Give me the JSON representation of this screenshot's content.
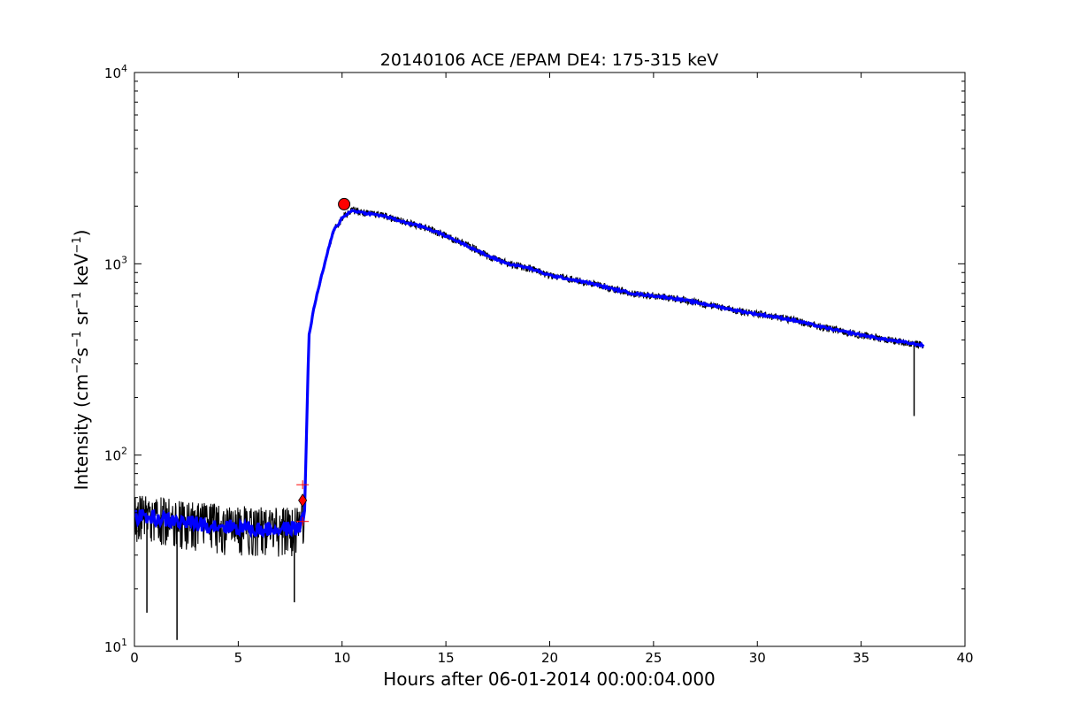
{
  "chart_data": {
    "type": "line",
    "title": "20140106 ACE /EPAM DE4: 175-315 keV",
    "xlabel": "Hours after 06-01-2014 00:00:04.000",
    "ylabel": {
      "prefix": "Intensity (cm",
      "exp1": "−2",
      "mid1": "s",
      "exp2": "−1",
      "mid2": " sr",
      "exp3": "−1",
      "mid3": " keV",
      "exp4": "−1",
      "suffix": ")"
    },
    "xlim": [
      0,
      40
    ],
    "ylim": [
      10,
      10000
    ],
    "yscale": "log",
    "x_ticks": [
      "0",
      "5",
      "10",
      "15",
      "20",
      "25",
      "30",
      "35",
      "40"
    ],
    "y_ticks": [
      {
        "base": "10",
        "exp": "1"
      },
      {
        "base": "10",
        "exp": "2"
      },
      {
        "base": "10",
        "exp": "3"
      },
      {
        "base": "10",
        "exp": "4"
      }
    ],
    "grid": false,
    "colors": {
      "raw": "#000000",
      "smoothed": "#0000ff",
      "marker": "#ff0000"
    },
    "series": [
      {
        "role": "raw",
        "profile": [
          [
            0.0,
            48
          ],
          [
            1.0,
            47
          ],
          [
            2.0,
            45
          ],
          [
            3.0,
            44
          ],
          [
            4.0,
            43
          ],
          [
            5.0,
            42
          ],
          [
            6.0,
            41
          ],
          [
            7.0,
            41
          ],
          [
            8.0,
            42
          ],
          [
            8.2,
            52
          ],
          [
            8.3,
            150
          ],
          [
            8.4,
            420
          ],
          [
            8.7,
            630
          ],
          [
            9.0,
            850
          ],
          [
            9.3,
            1150
          ],
          [
            9.6,
            1500
          ],
          [
            9.9,
            1650
          ],
          [
            10.0,
            1750
          ],
          [
            10.5,
            1900
          ],
          [
            11.0,
            1850
          ],
          [
            12.0,
            1780
          ],
          [
            13.0,
            1650
          ],
          [
            14.0,
            1550
          ],
          [
            15.0,
            1400
          ],
          [
            16.0,
            1250
          ],
          [
            17.0,
            1100
          ],
          [
            18.0,
            1000
          ],
          [
            19.0,
            950
          ],
          [
            20.0,
            870
          ],
          [
            21.0,
            830
          ],
          [
            22.0,
            790
          ],
          [
            23.0,
            740
          ],
          [
            24.0,
            700
          ],
          [
            25.0,
            680
          ],
          [
            26.0,
            660
          ],
          [
            27.0,
            630
          ],
          [
            28.0,
            600
          ],
          [
            29.0,
            570
          ],
          [
            30.0,
            545
          ],
          [
            31.0,
            525
          ],
          [
            32.0,
            500
          ],
          [
            33.0,
            470
          ],
          [
            34.0,
            445
          ],
          [
            35.0,
            425
          ],
          [
            36.0,
            405
          ],
          [
            37.0,
            390
          ],
          [
            38.0,
            375
          ]
        ],
        "spikes": [
          [
            0.6,
            15
          ],
          [
            2.05,
            10.8
          ],
          [
            7.7,
            17
          ],
          [
            37.55,
            160
          ]
        ]
      },
      {
        "role": "smoothed",
        "profile": [
          [
            0.0,
            48
          ],
          [
            1.0,
            47
          ],
          [
            2.0,
            45
          ],
          [
            3.0,
            44
          ],
          [
            4.0,
            43
          ],
          [
            5.0,
            42
          ],
          [
            6.0,
            41
          ],
          [
            7.0,
            41
          ],
          [
            8.0,
            42
          ],
          [
            8.2,
            52
          ],
          [
            8.3,
            150
          ],
          [
            8.4,
            420
          ],
          [
            8.7,
            630
          ],
          [
            9.0,
            850
          ],
          [
            9.3,
            1150
          ],
          [
            9.6,
            1500
          ],
          [
            9.9,
            1650
          ],
          [
            10.0,
            1750
          ],
          [
            10.5,
            1900
          ],
          [
            11.0,
            1850
          ],
          [
            12.0,
            1780
          ],
          [
            13.0,
            1650
          ],
          [
            14.0,
            1550
          ],
          [
            15.0,
            1400
          ],
          [
            16.0,
            1250
          ],
          [
            17.0,
            1100
          ],
          [
            18.0,
            1000
          ],
          [
            19.0,
            950
          ],
          [
            20.0,
            870
          ],
          [
            21.0,
            830
          ],
          [
            22.0,
            790
          ],
          [
            23.0,
            740
          ],
          [
            24.0,
            700
          ],
          [
            25.0,
            680
          ],
          [
            26.0,
            660
          ],
          [
            27.0,
            630
          ],
          [
            28.0,
            600
          ],
          [
            29.0,
            570
          ],
          [
            30.0,
            545
          ],
          [
            31.0,
            525
          ],
          [
            32.0,
            500
          ],
          [
            33.0,
            470
          ],
          [
            34.0,
            445
          ],
          [
            35.0,
            425
          ],
          [
            36.0,
            405
          ],
          [
            37.0,
            390
          ],
          [
            38.0,
            375
          ]
        ]
      }
    ],
    "markers": [
      {
        "kind": "circle",
        "x": 10.1,
        "y": 2050
      },
      {
        "kind": "diamond",
        "x": 8.1,
        "y": 58
      },
      {
        "kind": "plus",
        "x": 8.1,
        "y": 70
      },
      {
        "kind": "plus",
        "x": 8.1,
        "y": 45
      }
    ]
  }
}
